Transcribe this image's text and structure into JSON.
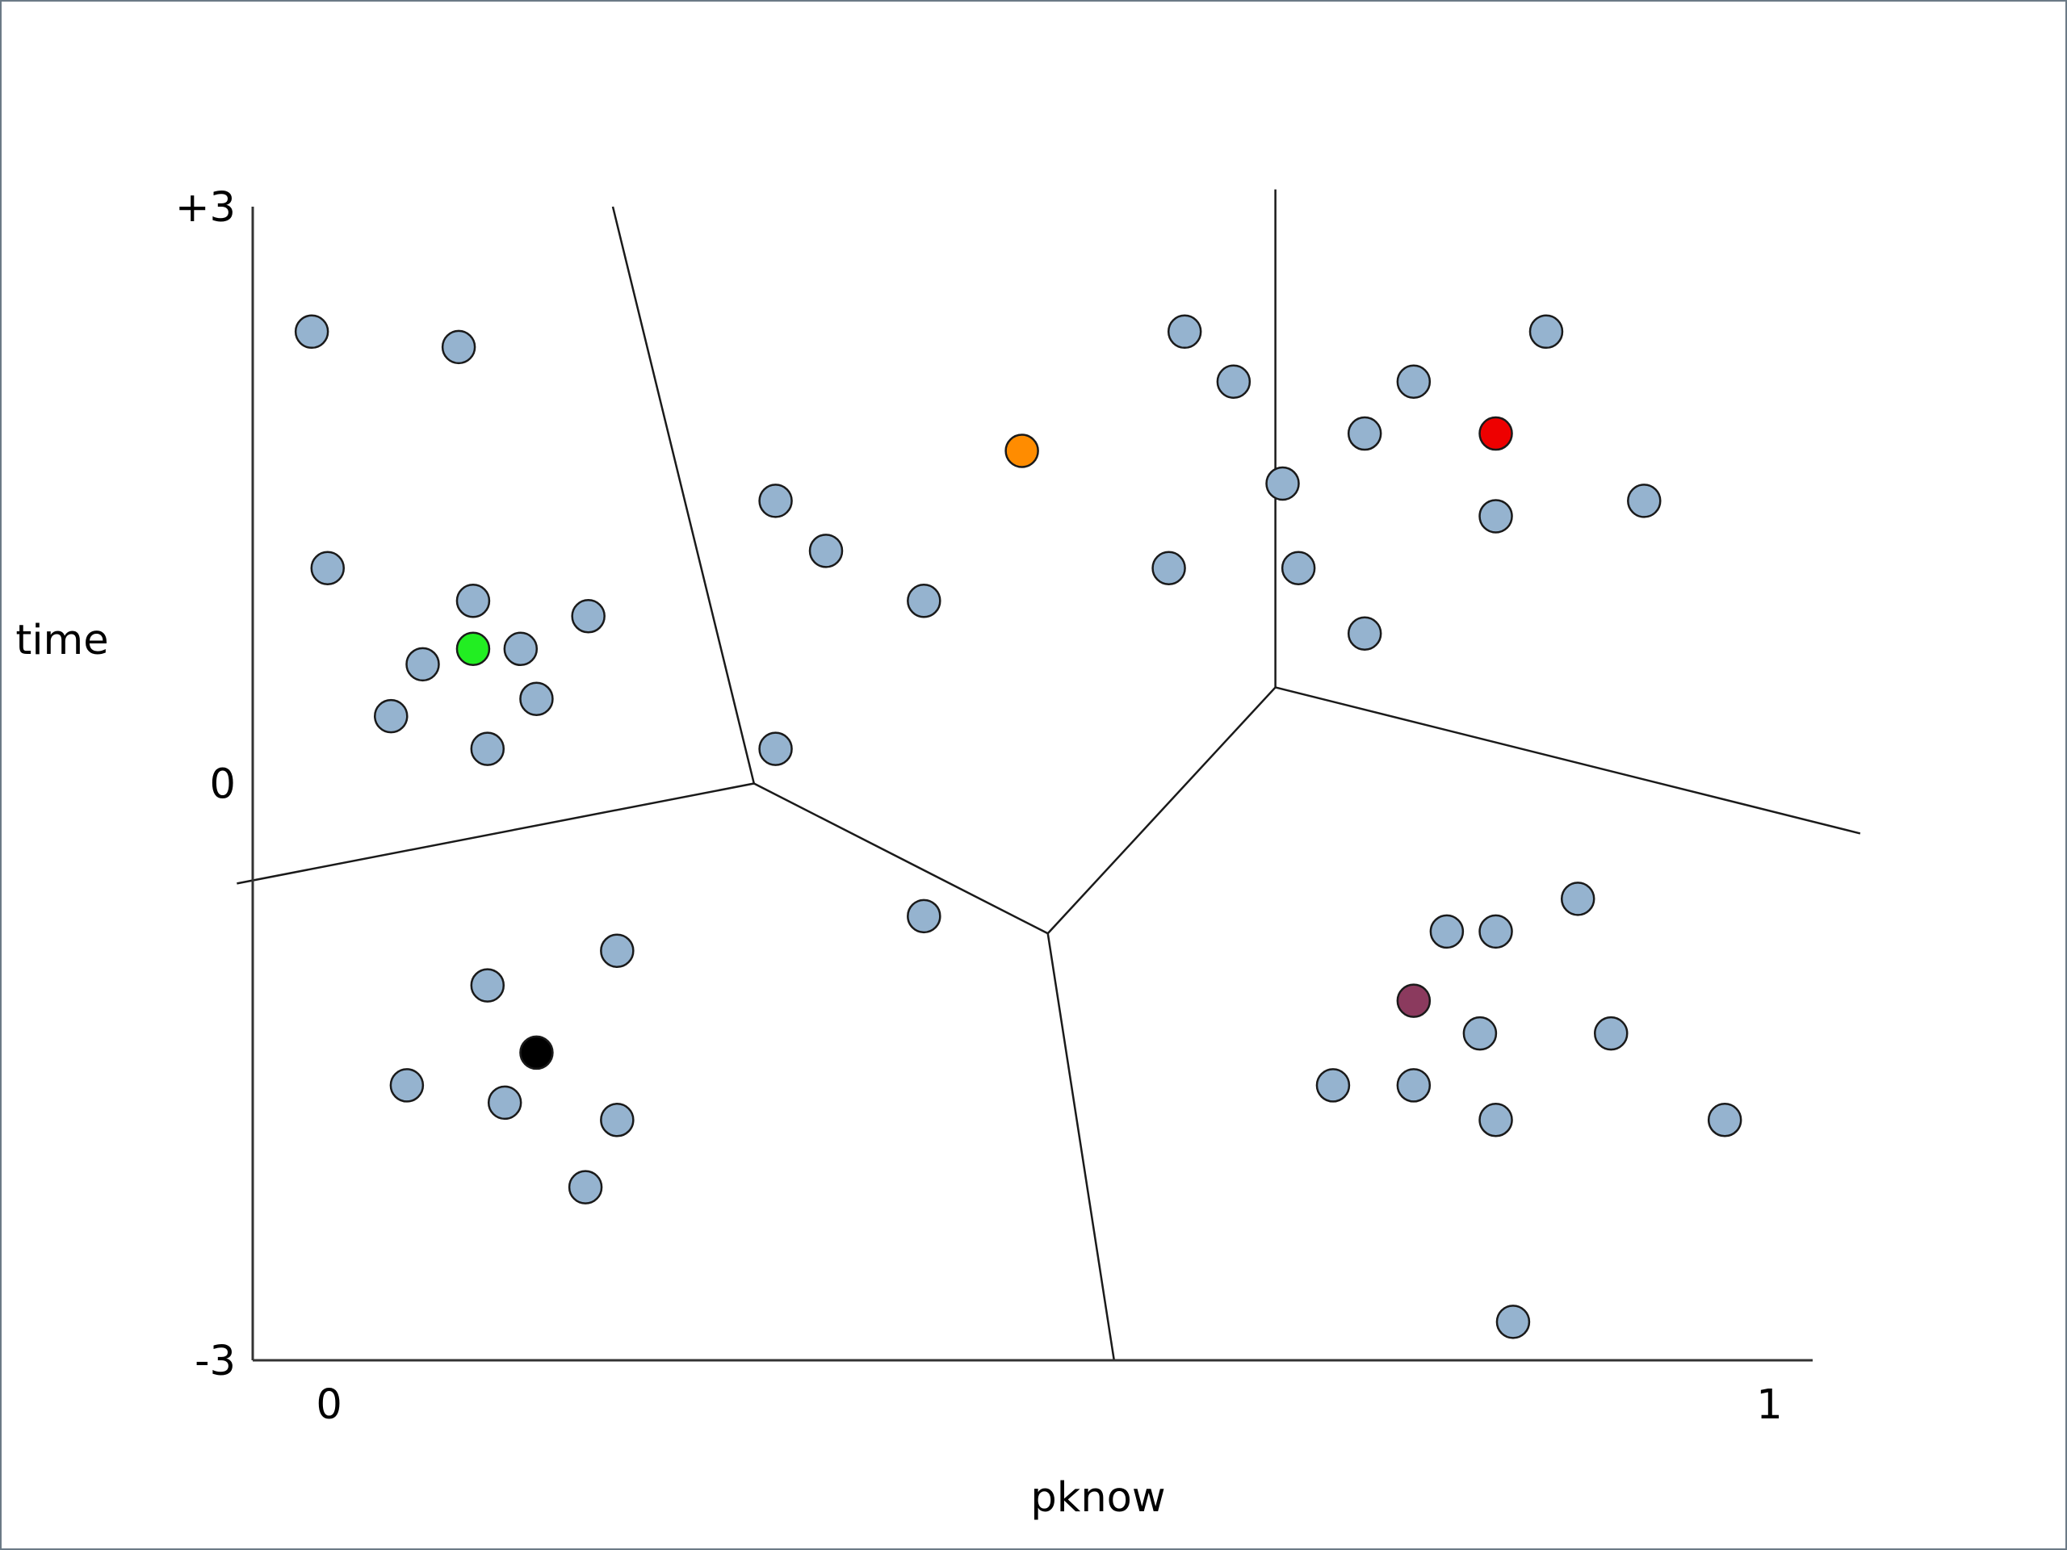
{
  "chart_data": {
    "type": "scatter",
    "xlabel": "pknow",
    "ylabel": "time",
    "xlim": [
      -0.053,
      1.03
    ],
    "ylim": [
      -3.0,
      3.0
    ],
    "x_ticks": [
      {
        "value": 0,
        "label": "0"
      },
      {
        "value": 1,
        "label": "1"
      }
    ],
    "y_ticks": [
      {
        "value": 3,
        "label": "+3"
      },
      {
        "value": 0,
        "label": "0"
      },
      {
        "value": -3,
        "label": "-3"
      }
    ],
    "grid": false,
    "legend": "none",
    "colors": {
      "point": "#95b3cf",
      "outline": "#1a1a1a",
      "axis": "#333333",
      "boundary": "#1a1a1a"
    },
    "series": [
      {
        "color": "#95b3cf",
        "points": [
          [
            -0.012,
            2.35
          ],
          [
            0.09,
            2.27
          ],
          [
            -0.001,
            1.12
          ],
          [
            0.1,
            0.95
          ],
          [
            0.18,
            0.87
          ],
          [
            0.065,
            0.62
          ],
          [
            0.133,
            0.7
          ],
          [
            0.043,
            0.35
          ],
          [
            0.144,
            0.44
          ],
          [
            0.11,
            0.18
          ],
          [
            0.31,
            1.47
          ],
          [
            0.345,
            1.21
          ],
          [
            0.413,
            0.95
          ],
          [
            0.31,
            0.18
          ],
          [
            0.583,
            1.12
          ],
          [
            0.594,
            2.35
          ],
          [
            0.628,
            2.09
          ],
          [
            0.662,
            1.56
          ],
          [
            0.673,
            1.12
          ],
          [
            0.719,
            0.78
          ],
          [
            0.719,
            1.82
          ],
          [
            0.753,
            2.09
          ],
          [
            0.81,
            1.39
          ],
          [
            0.845,
            2.35
          ],
          [
            0.913,
            1.47
          ],
          [
            0.413,
            -0.69
          ],
          [
            0.11,
            -1.05
          ],
          [
            0.2,
            -0.87
          ],
          [
            0.054,
            -1.57
          ],
          [
            0.122,
            -1.66
          ],
          [
            0.2,
            -1.75
          ],
          [
            0.178,
            -2.1
          ],
          [
            0.776,
            -0.77
          ],
          [
            0.81,
            -0.77
          ],
          [
            0.867,
            -0.6
          ],
          [
            0.799,
            -1.3
          ],
          [
            0.89,
            -1.3
          ],
          [
            0.697,
            -1.57
          ],
          [
            0.753,
            -1.57
          ],
          [
            0.81,
            -1.75
          ],
          [
            0.969,
            -1.75
          ],
          [
            0.822,
            -2.8
          ]
        ]
      }
    ],
    "centroids": [
      {
        "color": "#22ee22",
        "point": [
          0.1,
          0.7
        ]
      },
      {
        "color": "#ff8c00",
        "point": [
          0.481,
          1.73
        ]
      },
      {
        "color": "#ee0000",
        "point": [
          0.81,
          1.82
        ]
      },
      {
        "color": "#000000",
        "point": [
          0.144,
          -1.4
        ]
      },
      {
        "color": "#8b3a5e",
        "point": [
          0.753,
          -1.13
        ]
      }
    ],
    "boundaries": [
      [
        [
          0.197,
          3.0
        ],
        [
          0.295,
          0.0
        ]
      ],
      [
        [
          -0.064,
          -0.52
        ],
        [
          0.295,
          0.0
        ]
      ],
      [
        [
          0.295,
          0.0
        ],
        [
          0.499,
          -0.78
        ]
      ],
      [
        [
          0.499,
          -0.78
        ],
        [
          0.545,
          -3.0
        ]
      ],
      [
        [
          0.499,
          -0.78
        ],
        [
          0.657,
          0.5
        ]
      ],
      [
        [
          0.657,
          3.09
        ],
        [
          0.657,
          0.5
        ]
      ],
      [
        [
          0.657,
          0.5
        ],
        [
          1.063,
          -0.26
        ]
      ]
    ]
  }
}
